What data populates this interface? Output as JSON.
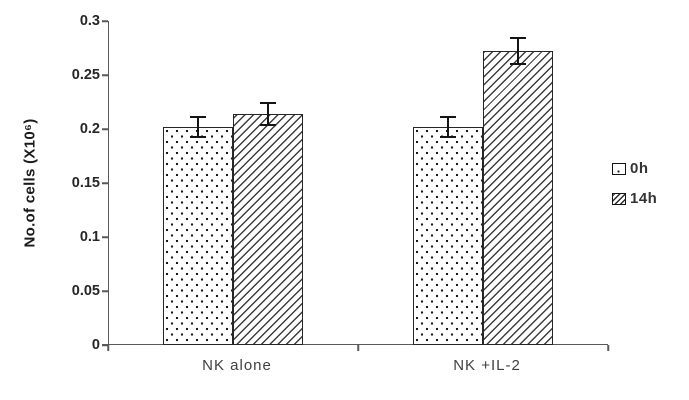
{
  "chart_data": {
    "type": "bar",
    "title": "",
    "xlabel": "",
    "ylabel": "No.of cells (X10⁶)",
    "categories": [
      "NK alone",
      "NK +IL-2"
    ],
    "series": [
      {
        "name": "0h",
        "pattern": "dots",
        "values": [
          0.202,
          0.202
        ],
        "errors": [
          0.01,
          0.01
        ]
      },
      {
        "name": "14h",
        "pattern": "hatch",
        "values": [
          0.214,
          0.272
        ],
        "errors": [
          0.011,
          0.013
        ]
      }
    ],
    "ylim": [
      0,
      0.3
    ],
    "yticks": [
      0,
      0.05,
      0.1,
      0.15,
      0.2,
      0.25,
      0.3
    ],
    "ytick_labels": [
      "0",
      "0.05",
      "0.1",
      "0.15",
      "0.2",
      "0.25",
      "0.3"
    ],
    "grid": false,
    "error_bars": true,
    "legend_position": "right",
    "colors": {
      "axis": "#595959",
      "tick_text": "#262626",
      "category_text": "#3f3f3f",
      "bar_border": "#262626",
      "bar_fill": "#ffffff",
      "error_bar": "#141414"
    }
  },
  "legend": {
    "items": [
      {
        "label": "0h"
      },
      {
        "label": "14h"
      }
    ]
  }
}
